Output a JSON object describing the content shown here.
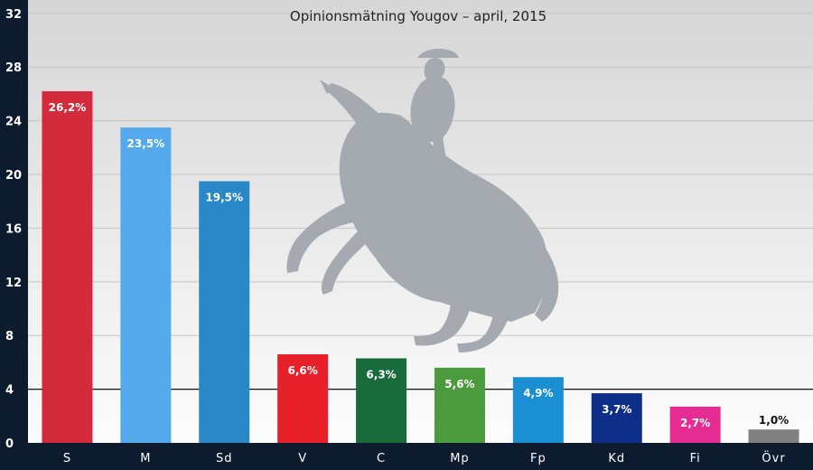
{
  "chart_data": {
    "type": "bar",
    "title": "Opinionsmätning Yougov – april, 2015",
    "categories": [
      "S",
      "M",
      "Sd",
      "V",
      "C",
      "Mp",
      "Fp",
      "Kd",
      "Fi",
      "Övr"
    ],
    "values": [
      26.2,
      23.5,
      19.5,
      6.6,
      6.3,
      5.6,
      4.9,
      3.7,
      2.7,
      1.0
    ],
    "data_labels": [
      "26,2%",
      "23,5%",
      "19,5%",
      "6,6%",
      "6,3%",
      "5,6%",
      "4,9%",
      "3,7%",
      "2,7%",
      "1,0%"
    ],
    "colors": [
      "#d42b3c",
      "#55aaee",
      "#2b88c8",
      "#e8202a",
      "#1a6b3c",
      "#4c9a3e",
      "#1b8fd4",
      "#0d2f8a",
      "#e52c92",
      "#808080"
    ],
    "ylim": [
      0,
      33
    ],
    "yticks": [
      0,
      4,
      8,
      12,
      16,
      20,
      24,
      28,
      32
    ],
    "reference_line": 4,
    "grid": true,
    "xlabel": "",
    "ylabel": ""
  },
  "style": {
    "axis_background": "#0d1b2e",
    "plot_background_top": "#d6d6d6",
    "plot_background_bottom": "#ffffff",
    "watermark_color": "#a4aab0",
    "watermark_icon": "equestrian-statue-silhouette"
  }
}
